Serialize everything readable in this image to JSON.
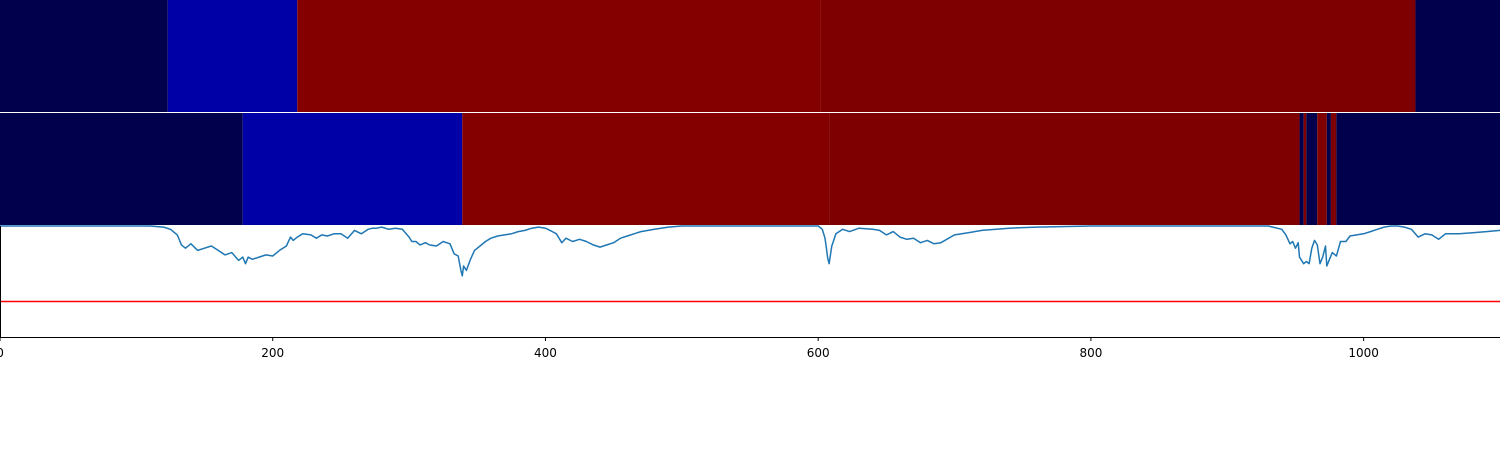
{
  "chart_data": {
    "type": "heatmap",
    "title": "",
    "xlabel": "",
    "ylabel": "",
    "xlim": [
      0,
      1100
    ],
    "grid": false,
    "legend": "none",
    "x_ticks": [
      0,
      200,
      400,
      600,
      800,
      1000
    ],
    "x_tick_labels": [
      "0",
      "200",
      "400",
      "600",
      "800",
      "1000"
    ],
    "segment_rows": [
      {
        "segments": [
          {
            "start": 0,
            "end": 123,
            "color": "#00004c"
          },
          {
            "start": 123,
            "end": 218,
            "color": "#0000a7"
          },
          {
            "start": 218,
            "end": 602,
            "color": "#840000"
          },
          {
            "start": 602,
            "end": 1038,
            "color": "#7f0000"
          },
          {
            "start": 1038,
            "end": 1100,
            "color": "#00004c"
          }
        ]
      },
      {
        "segments": [
          {
            "start": 0,
            "end": 178,
            "color": "#00004c"
          },
          {
            "start": 178,
            "end": 339,
            "color": "#0000a7"
          },
          {
            "start": 339,
            "end": 608,
            "color": "#840000"
          },
          {
            "start": 608,
            "end": 953,
            "color": "#7f0000"
          },
          {
            "start": 953,
            "end": 956,
            "color": "#00004c"
          },
          {
            "start": 956,
            "end": 958,
            "color": "#7f0000"
          },
          {
            "start": 958,
            "end": 966,
            "color": "#00004c"
          },
          {
            "start": 966,
            "end": 973,
            "color": "#7f0000"
          },
          {
            "start": 973,
            "end": 976,
            "color": "#00004c"
          },
          {
            "start": 976,
            "end": 980,
            "color": "#7f0000"
          },
          {
            "start": 980,
            "end": 1100,
            "color": "#00004c"
          }
        ]
      }
    ],
    "line_panel": {
      "ylim": [
        0,
        1
      ],
      "threshold": 0.32,
      "line_color": "#1f77b4",
      "threshold_color": "#ff0000",
      "x": [
        0,
        100,
        110,
        120,
        125,
        130,
        133,
        136,
        140,
        145,
        150,
        155,
        160,
        165,
        170,
        175,
        178,
        180,
        182,
        185,
        190,
        195,
        200,
        205,
        210,
        213,
        215,
        218,
        222,
        228,
        232,
        236,
        240,
        245,
        250,
        255,
        260,
        265,
        270,
        273,
        276,
        280,
        285,
        290,
        295,
        300,
        302,
        305,
        308,
        312,
        315,
        320,
        325,
        330,
        333,
        336,
        338,
        339,
        340,
        342,
        345,
        348,
        352,
        356,
        360,
        365,
        370,
        375,
        380,
        385,
        390,
        395,
        400,
        405,
        408,
        412,
        415,
        420,
        425,
        430,
        435,
        440,
        445,
        450,
        455,
        460,
        465,
        470,
        480,
        490,
        500,
        520,
        560,
        590,
        600,
        603,
        605,
        606,
        607,
        608,
        610,
        613,
        618,
        623,
        630,
        640,
        645,
        650,
        655,
        660,
        665,
        670,
        675,
        680,
        685,
        690,
        700,
        710,
        720,
        740,
        760,
        800,
        850,
        900,
        930,
        940,
        943,
        946,
        948,
        950,
        952,
        953,
        956,
        958,
        960,
        962,
        964,
        966,
        968,
        970,
        972,
        973,
        975,
        977,
        980,
        983,
        987,
        990,
        1000,
        1005,
        1010,
        1015,
        1020,
        1025,
        1030,
        1035,
        1040,
        1045,
        1050,
        1055,
        1060,
        1070,
        1080,
        1090,
        1100
      ],
      "y": [
        1.0,
        1.0,
        1.0,
        0.99,
        0.97,
        0.92,
        0.83,
        0.8,
        0.84,
        0.78,
        0.8,
        0.82,
        0.78,
        0.74,
        0.76,
        0.69,
        0.72,
        0.66,
        0.72,
        0.7,
        0.72,
        0.74,
        0.73,
        0.78,
        0.82,
        0.9,
        0.87,
        0.9,
        0.93,
        0.92,
        0.89,
        0.92,
        0.91,
        0.93,
        0.93,
        0.89,
        0.96,
        0.93,
        0.97,
        0.98,
        0.98,
        0.99,
        0.97,
        0.98,
        0.97,
        0.9,
        0.86,
        0.86,
        0.83,
        0.85,
        0.83,
        0.82,
        0.86,
        0.84,
        0.75,
        0.73,
        0.6,
        0.55,
        0.64,
        0.6,
        0.7,
        0.78,
        0.82,
        0.86,
        0.89,
        0.91,
        0.92,
        0.93,
        0.95,
        0.96,
        0.98,
        0.99,
        0.98,
        0.95,
        0.93,
        0.85,
        0.89,
        0.86,
        0.88,
        0.86,
        0.83,
        0.81,
        0.83,
        0.85,
        0.89,
        0.91,
        0.93,
        0.95,
        0.97,
        0.99,
        1.0,
        1.0,
        1.0,
        1.0,
        1.0,
        0.97,
        0.89,
        0.8,
        0.71,
        0.66,
        0.82,
        0.93,
        0.97,
        0.95,
        0.98,
        0.97,
        0.96,
        0.92,
        0.95,
        0.9,
        0.88,
        0.89,
        0.85,
        0.87,
        0.84,
        0.85,
        0.92,
        0.94,
        0.96,
        0.98,
        0.99,
        1.0,
        1.0,
        1.0,
        1.0,
        0.97,
        0.92,
        0.84,
        0.86,
        0.8,
        0.85,
        0.72,
        0.66,
        0.68,
        0.66,
        0.8,
        0.87,
        0.83,
        0.66,
        0.72,
        0.82,
        0.64,
        0.7,
        0.76,
        0.73,
        0.86,
        0.86,
        0.91,
        0.93,
        0.95,
        0.97,
        0.99,
        1.0,
        1.0,
        0.99,
        0.97,
        0.9,
        0.93,
        0.92,
        0.88,
        0.93,
        0.93,
        0.94,
        0.95,
        0.96
      ]
    }
  }
}
